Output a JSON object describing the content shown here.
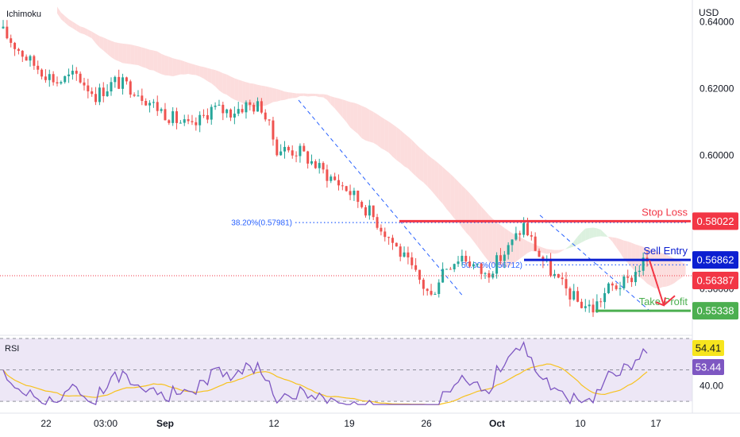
{
  "indicator_name": "Ichimoku",
  "rsi_label": "RSI",
  "currency": "USD",
  "colors": {
    "up": "#26a69a",
    "down": "#ef5350",
    "cloud_bear": "#fbd7d7",
    "cloud_bull": "#d6efd9",
    "stop_loss": "#f23645",
    "sell_entry": "#0c1fd1",
    "take_profit": "#4caf50",
    "fib": "#2962ff",
    "rsi_line": "#7e57c2",
    "rsi_ma": "#f7c21e",
    "rsi_band": "#ede7f6",
    "current_price": "#f23645",
    "arrow": "#f23645"
  },
  "chart_data": [
    {
      "type": "candlestick",
      "title": "",
      "y_unit": "USD",
      "ylim": [
        0.5465,
        0.6465
      ],
      "y_ticks": [
        "0.64000",
        "0.62000",
        "0.60000",
        "0.56000"
      ],
      "x_ticks": [
        "22",
        "03:00",
        "Sep",
        "12",
        "19",
        "26",
        "Oct",
        "10",
        "17"
      ],
      "price_path_anchors": [
        [
          0,
          0.638
        ],
        [
          8,
          0.628
        ],
        [
          15,
          0.622
        ],
        [
          20,
          0.624
        ],
        [
          25,
          0.618
        ],
        [
          30,
          0.622
        ],
        [
          35,
          0.62
        ],
        [
          40,
          0.615
        ],
        [
          45,
          0.611
        ],
        [
          50,
          0.608
        ],
        [
          55,
          0.614
        ],
        [
          60,
          0.613
        ],
        [
          64,
          0.615
        ],
        [
          68,
          0.6145
        ],
        [
          72,
          0.602
        ],
        [
          78,
          0.601
        ],
        [
          84,
          0.595
        ],
        [
          90,
          0.59
        ],
        [
          96,
          0.583
        ],
        [
          102,
          0.574
        ],
        [
          108,
          0.564
        ],
        [
          112,
          0.5575
        ],
        [
          115,
          0.566
        ],
        [
          120,
          0.57
        ],
        [
          126,
          0.564
        ],
        [
          132,
          0.572
        ],
        [
          136,
          0.579
        ],
        [
          140,
          0.57
        ],
        [
          145,
          0.562
        ],
        [
          150,
          0.556
        ],
        [
          154,
          0.554
        ],
        [
          158,
          0.56
        ],
        [
          163,
          0.562
        ],
        [
          167,
          0.568
        ]
      ],
      "annotations": [
        {
          "label": "Stop Loss",
          "value": "0.58022"
        },
        {
          "label": "Sell Entry",
          "value": "0.56862"
        },
        {
          "label": "Take Profit",
          "value": "0.55338"
        }
      ],
      "current_price": "0.56387",
      "fibonacci": [
        {
          "label": "38.20%(0.57981)",
          "value": 0.57981
        },
        {
          "label": "50.00%(0.56712)",
          "value": 0.56712
        }
      ],
      "tags": {
        "stop_loss": "0.58022",
        "sell_entry": "0.56862",
        "current": "0.56387",
        "take_profit": "0.55338"
      }
    },
    {
      "type": "line",
      "title": "RSI",
      "ylim": [
        25,
        72
      ],
      "levels": [
        70,
        50,
        30
      ],
      "y_ticks": [
        "40.00"
      ],
      "series": [
        {
          "name": "RSI",
          "value_tag": "53.44"
        },
        {
          "name": "RSI MA",
          "value_tag": "54.41"
        }
      ]
    }
  ]
}
